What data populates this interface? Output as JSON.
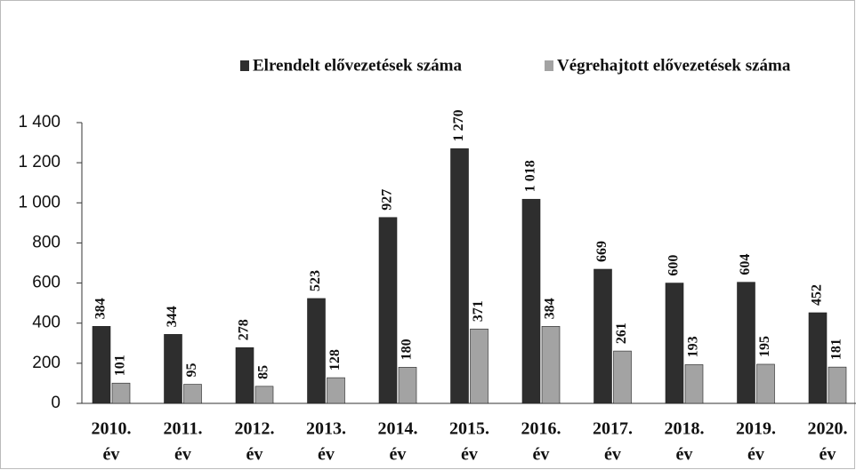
{
  "chart_data": {
    "type": "bar",
    "categories": [
      [
        "2010.",
        "év"
      ],
      [
        "2011.",
        "év"
      ],
      [
        "2012.",
        "év"
      ],
      [
        "2013.",
        "év"
      ],
      [
        "2014.",
        "év"
      ],
      [
        "2015.",
        "év"
      ],
      [
        "2016.",
        "év"
      ],
      [
        "2017.",
        "év"
      ],
      [
        "2018.",
        "év"
      ],
      [
        "2019.",
        "év"
      ],
      [
        "2020.",
        "év"
      ]
    ],
    "series": [
      {
        "name": "Elrendelt elővezetések száma",
        "color": "#2e2e2e",
        "values": [
          384,
          344,
          278,
          523,
          927,
          1270,
          1018,
          669,
          600,
          604,
          452
        ],
        "value_labels": [
          "384",
          "344",
          "278",
          "523",
          "927",
          "1 270",
          "1 018",
          "669",
          "600",
          "604",
          "452"
        ]
      },
      {
        "name": "Végrehajtott elővezetések száma",
        "color": "#a3a3a3",
        "values": [
          101,
          95,
          85,
          128,
          180,
          371,
          384,
          261,
          193,
          195,
          181
        ]
      }
    ],
    "ylim": [
      0,
      1400
    ],
    "yticks": [
      0,
      200,
      400,
      600,
      800,
      {
        "value": 1000,
        "label": "1 000"
      },
      {
        "value": 1200,
        "label": "1 200"
      },
      {
        "value": 1400,
        "label": "1 400"
      }
    ],
    "legend": "top"
  }
}
